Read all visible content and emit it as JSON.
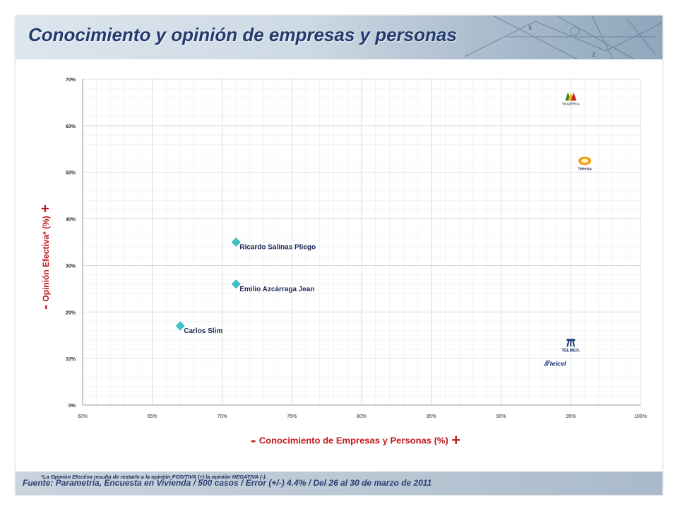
{
  "header": {
    "title": "Conocimiento y opinión de empresas y personas"
  },
  "axes": {
    "x_sign_minus": "-",
    "x_label": "Conocimiento de Empresas y Personas (%)",
    "x_sign_plus": "+",
    "y_sign_minus": "-",
    "y_label": "Opinión Efectiva* (%)",
    "y_sign_plus": "+"
  },
  "footnote": "*La Opinión Efectiva resulta de restarle a la opinión POSITIVA (+) la opinión NEGATIVA (-).",
  "footer": {
    "source": "Fuente: Parametría, Encuesta en Vivienda / 500 casos / Error (+/-) 4.4% / Del 26 al 30 de marzo de 2011"
  },
  "colors": {
    "marker": "#3ec4c8",
    "axis_label": "#c0181c",
    "title": "#233a6e",
    "grid": "#d6d6d6"
  },
  "chart_data": {
    "type": "scatter",
    "title": "Conocimiento y opinión de empresas y personas",
    "xlabel": "Conocimiento de Empresas y Personas (%)",
    "ylabel": "Opinión Efectiva* (%)",
    "xlim": [
      60,
      100
    ],
    "ylim": [
      0,
      70
    ],
    "grid": true,
    "x_ticks": [
      60,
      65,
      70,
      75,
      80,
      85,
      90,
      95,
      100
    ],
    "x_tick_labels": [
      "60%",
      "65%",
      "70%",
      "75%",
      "80%",
      "85%",
      "90%",
      "95%",
      "100%"
    ],
    "y_ticks": [
      0,
      10,
      20,
      30,
      40,
      50,
      60,
      70
    ],
    "y_tick_labels": [
      "0%",
      "10%",
      "20%",
      "30%",
      "40%",
      "50%",
      "60%",
      "70%"
    ],
    "points": [
      {
        "name": "Ricardo Salinas Pliego",
        "label": "Ricardo Salinas Pliego",
        "x": 71,
        "y": 35,
        "marker": "diamond"
      },
      {
        "name": "Emilio Azcárraga Jean",
        "label": "Emilio Azcárraga Jean",
        "x": 71,
        "y": 26,
        "marker": "diamond"
      },
      {
        "name": "Carlos Slim",
        "label": "Carlos Slim",
        "x": 67,
        "y": 17,
        "marker": "diamond"
      },
      {
        "name": "TV Azteca",
        "label": "TV AZTECA",
        "x": 95,
        "y": 66,
        "marker": "tvazteca-logo"
      },
      {
        "name": "Televisa",
        "label": "Televisa",
        "x": 96,
        "y": 52,
        "marker": "televisa-logo"
      },
      {
        "name": "Telmex",
        "label": "TELMEX.",
        "x": 95,
        "y": 13,
        "marker": "telmex-logo"
      },
      {
        "name": "Telcel",
        "label": "telcel",
        "x": 94,
        "y": 9,
        "marker": "telcel-logo"
      }
    ]
  }
}
